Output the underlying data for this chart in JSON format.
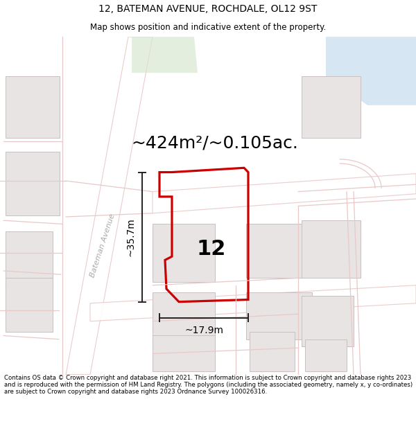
{
  "title_line1": "12, BATEMAN AVENUE, ROCHDALE, OL12 9ST",
  "title_line2": "Map shows position and indicative extent of the property.",
  "area_text": "~424m²/~0.105ac.",
  "label_number": "12",
  "dim_vertical": "~35.7m",
  "dim_horizontal": "~17.9m",
  "footer_text": "Contains OS data © Crown copyright and database right 2021. This information is subject to Crown copyright and database rights 2023 and is reproduced with the permission of HM Land Registry. The polygons (including the associated geometry, namely x, y co-ordinates) are subject to Crown copyright and database rights 2023 Ordnance Survey 100026316.",
  "bg_color": "#f8f6f6",
  "road_color": "#e8c8c8",
  "road_outline_color": "#e0b0b0",
  "building_fill": "#e8e4e4",
  "building_edge": "#c8c0c0",
  "highlight_color": "#cc0000",
  "dim_color": "#222222",
  "street_label": "Bateman Avenue",
  "water_color": "#cce0f0",
  "green_color": "#d8e8d0",
  "title_fontsize": 10,
  "subtitle_fontsize": 8.5,
  "area_fontsize": 18,
  "num_fontsize": 22,
  "dim_fontsize": 10,
  "footer_fontsize": 6.2
}
